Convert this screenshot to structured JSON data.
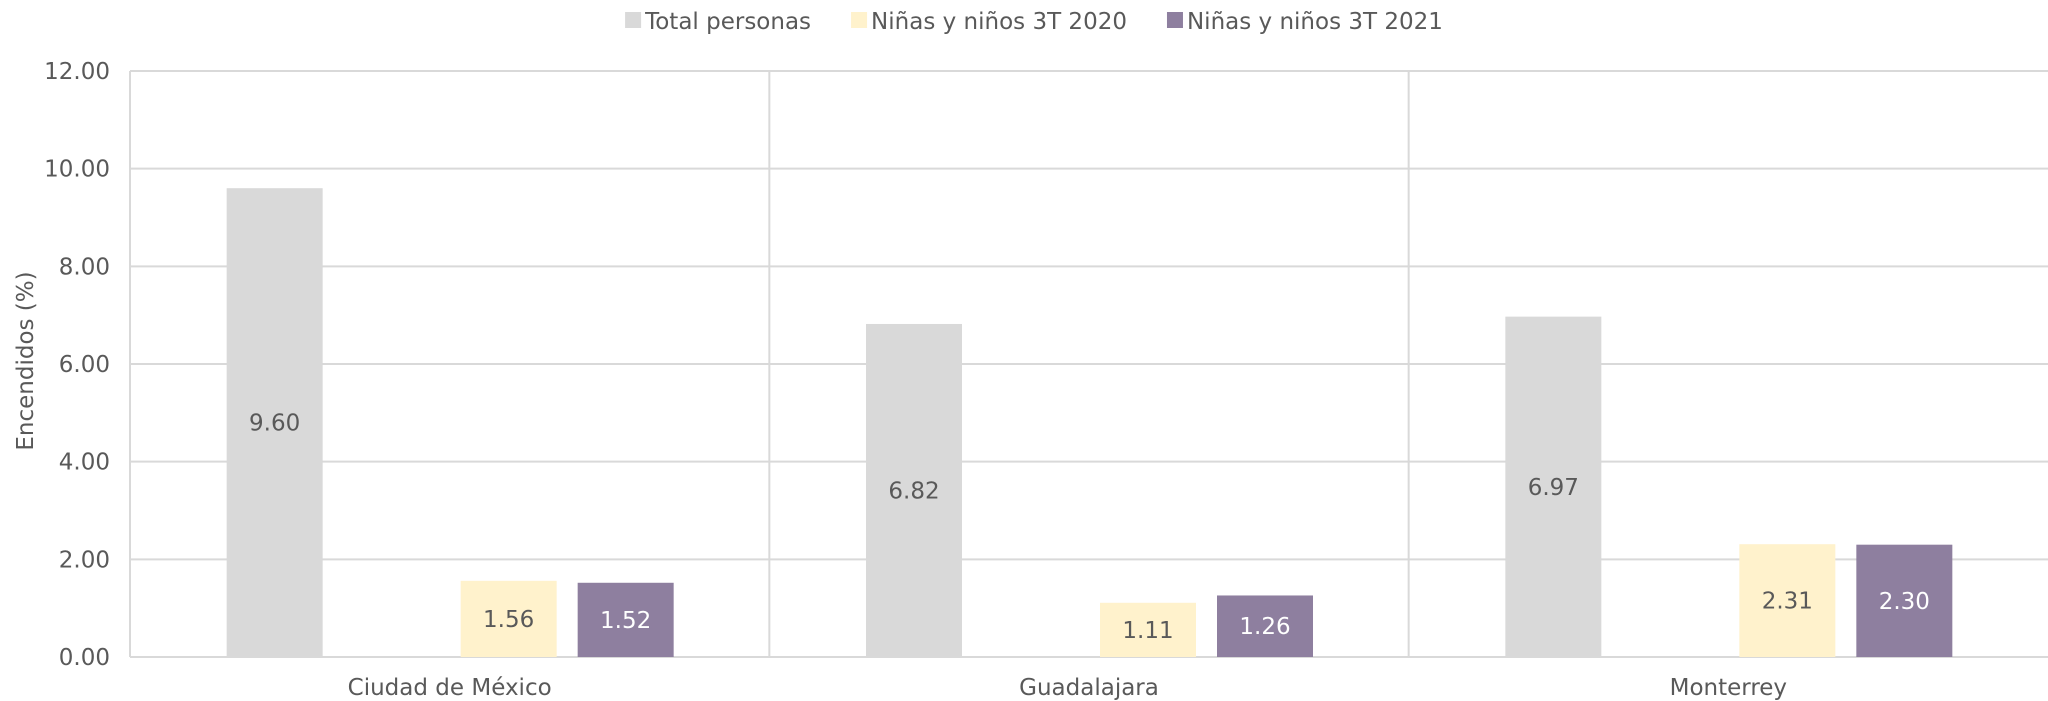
{
  "chart_data": {
    "type": "bar",
    "ylabel": "Encendidos (%)",
    "xlabel": "",
    "ylim": [
      0,
      12
    ],
    "yticks": [
      "0.00",
      "2.00",
      "4.00",
      "6.00",
      "8.00",
      "10.00",
      "12.00"
    ],
    "grid": true,
    "legend_position": "top",
    "categories": [
      "Ciudad de México",
      "Guadalajara",
      "Monterrey"
    ],
    "series": [
      {
        "name": "Total personas",
        "color": "#d9d9d9",
        "label_color": "#595959",
        "values": [
          9.6,
          6.82,
          6.97
        ],
        "labels": [
          "9.60",
          "6.82",
          "6.97"
        ]
      },
      {
        "name": "Niñas y niños 3T 2020",
        "color": "#fff2cc",
        "label_color": "#595959",
        "values": [
          1.56,
          1.11,
          2.31
        ],
        "labels": [
          "1.56",
          "1.11",
          "2.31"
        ]
      },
      {
        "name": "Niñas y niños 3T 2021",
        "color": "#8e7f9f",
        "label_color": "#ffffff",
        "values": [
          1.52,
          1.26,
          2.3
        ],
        "labels": [
          "1.52",
          "1.26",
          "2.30"
        ]
      }
    ]
  }
}
